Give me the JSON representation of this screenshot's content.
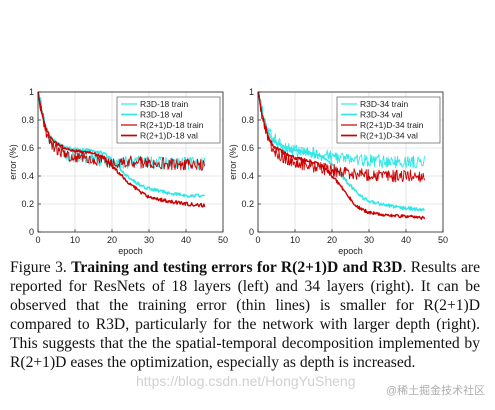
{
  "chart_data": [
    {
      "type": "line",
      "title": "",
      "xlabel": "epoch",
      "ylabel": "error (%)",
      "xlim": [
        0,
        50
      ],
      "ylim": [
        0,
        1
      ],
      "xticks": [
        "0",
        "10",
        "20",
        "30",
        "40",
        "50"
      ],
      "yticks": [
        "0",
        "0.2",
        "0.4",
        "0.6",
        "0.8",
        "1"
      ],
      "grid": true,
      "legend": "top-right",
      "series": [
        {
          "name": "R3D-18 train",
          "color": "#33e6e6",
          "width": 0.9,
          "noise": 0.045,
          "x": [
            0,
            1,
            2,
            3,
            4,
            6,
            8,
            10,
            15,
            20,
            25,
            30,
            35,
            40,
            45
          ],
          "y": [
            1.0,
            0.88,
            0.76,
            0.68,
            0.63,
            0.58,
            0.55,
            0.53,
            0.52,
            0.5,
            0.5,
            0.5,
            0.49,
            0.49,
            0.49
          ]
        },
        {
          "name": "R3D-18 val",
          "color": "#33e6e6",
          "width": 1.4,
          "noise": 0.012,
          "x": [
            0,
            1,
            2,
            3,
            4,
            6,
            8,
            10,
            15,
            18,
            20,
            22,
            24,
            26,
            28,
            30,
            35,
            40,
            45
          ],
          "y": [
            1.0,
            0.86,
            0.76,
            0.7,
            0.66,
            0.62,
            0.6,
            0.59,
            0.58,
            0.56,
            0.51,
            0.46,
            0.4,
            0.36,
            0.33,
            0.31,
            0.28,
            0.26,
            0.26
          ]
        },
        {
          "name": "R(2+1)D-18 train",
          "color": "#cc0000",
          "width": 0.9,
          "noise": 0.045,
          "x": [
            0,
            1,
            2,
            3,
            4,
            6,
            8,
            10,
            15,
            20,
            25,
            30,
            35,
            40,
            45
          ],
          "y": [
            1.0,
            0.86,
            0.74,
            0.66,
            0.62,
            0.57,
            0.55,
            0.53,
            0.52,
            0.5,
            0.5,
            0.5,
            0.49,
            0.48,
            0.48
          ]
        },
        {
          "name": "R(2+1)D-18 val",
          "color": "#cc0000",
          "width": 1.4,
          "noise": 0.012,
          "x": [
            0,
            1,
            2,
            3,
            4,
            6,
            8,
            10,
            15,
            18,
            20,
            22,
            24,
            26,
            28,
            30,
            35,
            40,
            45
          ],
          "y": [
            1.0,
            0.85,
            0.75,
            0.69,
            0.65,
            0.62,
            0.59,
            0.58,
            0.56,
            0.53,
            0.47,
            0.42,
            0.36,
            0.32,
            0.28,
            0.25,
            0.22,
            0.2,
            0.19
          ]
        }
      ]
    },
    {
      "type": "line",
      "title": "",
      "xlabel": "epoch",
      "ylabel": "error (%)",
      "xlim": [
        0,
        50
      ],
      "ylim": [
        0,
        1
      ],
      "xticks": [
        "0",
        "10",
        "20",
        "30",
        "40",
        "50"
      ],
      "yticks": [
        "0",
        "0.2",
        "0.4",
        "0.6",
        "0.8",
        "1"
      ],
      "grid": true,
      "legend": "top-right",
      "series": [
        {
          "name": "R3D-34 train",
          "color": "#33e6e6",
          "width": 0.9,
          "noise": 0.045,
          "x": [
            0,
            1,
            2,
            3,
            4,
            6,
            8,
            10,
            15,
            20,
            25,
            30,
            35,
            40,
            45
          ],
          "y": [
            1.0,
            0.88,
            0.78,
            0.71,
            0.67,
            0.63,
            0.6,
            0.58,
            0.56,
            0.54,
            0.52,
            0.51,
            0.5,
            0.5,
            0.5
          ]
        },
        {
          "name": "R3D-34 val",
          "color": "#33e6e6",
          "width": 1.4,
          "noise": 0.012,
          "x": [
            0,
            1,
            2,
            3,
            4,
            6,
            8,
            10,
            15,
            18,
            20,
            22,
            24,
            26,
            28,
            30,
            35,
            40,
            45
          ],
          "y": [
            1.0,
            0.86,
            0.76,
            0.7,
            0.66,
            0.62,
            0.6,
            0.58,
            0.56,
            0.53,
            0.48,
            0.42,
            0.36,
            0.3,
            0.25,
            0.22,
            0.19,
            0.17,
            0.16
          ]
        },
        {
          "name": "R(2+1)D-34 train",
          "color": "#cc0000",
          "width": 0.9,
          "noise": 0.045,
          "x": [
            0,
            1,
            2,
            3,
            4,
            6,
            8,
            10,
            15,
            20,
            25,
            30,
            35,
            40,
            45
          ],
          "y": [
            1.0,
            0.85,
            0.73,
            0.65,
            0.6,
            0.55,
            0.52,
            0.5,
            0.47,
            0.44,
            0.42,
            0.41,
            0.4,
            0.4,
            0.4
          ]
        },
        {
          "name": "R(2+1)D-34 val",
          "color": "#cc0000",
          "width": 1.4,
          "noise": 0.012,
          "x": [
            0,
            1,
            2,
            3,
            4,
            6,
            8,
            10,
            15,
            18,
            20,
            22,
            24,
            26,
            28,
            30,
            35,
            40,
            45
          ],
          "y": [
            1.0,
            0.85,
            0.74,
            0.67,
            0.62,
            0.58,
            0.55,
            0.53,
            0.5,
            0.46,
            0.4,
            0.34,
            0.27,
            0.2,
            0.16,
            0.14,
            0.12,
            0.11,
            0.1
          ]
        }
      ]
    }
  ],
  "caption": {
    "label": "Figure 3.",
    "bold": "Training and testing errors for R(2+1)D and R3D",
    "text": ". Results are reported for ResNets of 18 layers (left) and 34 layers (right).  It can be observed that the training error (thin lines) is smaller for R(2+1)D compared to R3D, particularly for the network with larger depth (right). This suggests that the the spatial-temporal decomposition implemented by R(2+1)D eases the optimization, especially as depth is increased."
  },
  "watermark": "https://blog.csdn.net/HongYuSheng",
  "watermark2": "@稀土掘金技术社区"
}
